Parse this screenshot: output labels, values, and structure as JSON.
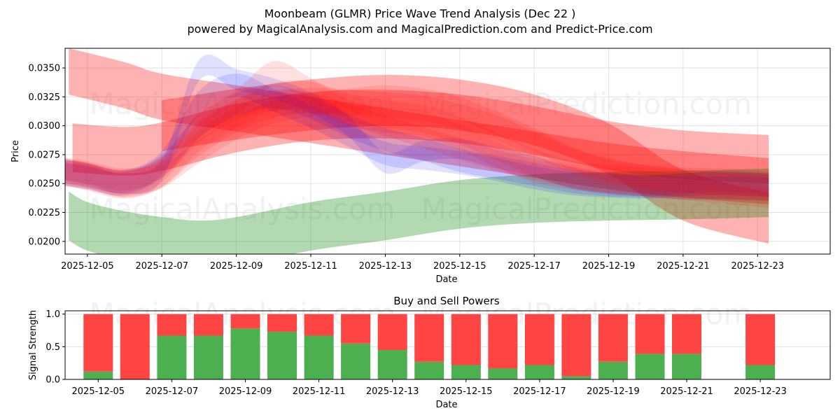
{
  "title": "Moonbeam (GLMR) Price Wave Trend Analysis (Dec 22 )",
  "subtitle": "powered by MagicalAnalysis.com and MagicalPrediction.com and Predict-Price.com",
  "watermarks": [
    "MagicalAnalysis.com",
    "MagicalPrediction.com"
  ],
  "colors": {
    "red": "#ff0000",
    "blue": "#0000ff",
    "green": "#008000",
    "buy": "#4caf50",
    "sell": "#ff4444",
    "grid": "#dddddd"
  },
  "chart_data": [
    {
      "type": "line",
      "name": "price-wave-chart",
      "xlabel": "Date",
      "ylabel": "Price",
      "xlim": [
        -0.6,
        19.95
      ],
      "ylim": [
        0.0189,
        0.0367
      ],
      "x_ticks": [
        {
          "x": 0,
          "label": "2025-12-05"
        },
        {
          "x": 2,
          "label": "2025-12-07"
        },
        {
          "x": 4,
          "label": "2025-12-09"
        },
        {
          "x": 6,
          "label": "2025-12-11"
        },
        {
          "x": 8,
          "label": "2025-12-13"
        },
        {
          "x": 10,
          "label": "2025-12-15"
        },
        {
          "x": 12,
          "label": "2025-12-17"
        },
        {
          "x": 14,
          "label": "2025-12-19"
        },
        {
          "x": 16,
          "label": "2025-12-21"
        },
        {
          "x": 18,
          "label": "2025-12-23"
        }
      ],
      "y_ticks": [
        {
          "y": 0.02,
          "label": "0.0200"
        },
        {
          "y": 0.0225,
          "label": "0.0225"
        },
        {
          "y": 0.025,
          "label": "0.0250"
        },
        {
          "y": 0.0275,
          "label": "0.0275"
        },
        {
          "y": 0.03,
          "label": "0.0300"
        },
        {
          "y": 0.0325,
          "label": "0.0325"
        },
        {
          "y": 0.035,
          "label": "0.0350"
        }
      ],
      "bands": [
        {
          "name": "red-band-wide-top",
          "color": "red",
          "opacity": 0.3,
          "x": [
            -0.5,
            1,
            2,
            4,
            6,
            8,
            10,
            12,
            14,
            16,
            18.3
          ],
          "center": [
            0.0347,
            0.0335,
            0.0325,
            0.0315,
            0.0305,
            0.0295,
            0.0285,
            0.0275,
            0.0265,
            0.0258,
            0.0252
          ],
          "half": 0.002
        },
        {
          "name": "red-band-mid",
          "color": "red",
          "opacity": 0.3,
          "x": [
            -0.4,
            1,
            2,
            4,
            6,
            8,
            10,
            12,
            14,
            16,
            18.3
          ],
          "center": [
            0.0281,
            0.0278,
            0.0282,
            0.0298,
            0.0308,
            0.031,
            0.0306,
            0.0296,
            0.0283,
            0.0275,
            0.0271
          ],
          "half": 0.0021
        },
        {
          "name": "red-band-low",
          "color": "red",
          "opacity": 0.3,
          "x": [
            2,
            4,
            6,
            8,
            10,
            12,
            14,
            16,
            18.3
          ],
          "center": [
            0.03,
            0.031,
            0.0318,
            0.0322,
            0.0318,
            0.0305,
            0.028,
            0.024,
            0.022
          ],
          "half": 0.0022
        },
        {
          "name": "green-band",
          "color": "green",
          "opacity": 0.3,
          "x": [
            -0.5,
            0,
            1,
            2,
            3,
            4,
            6,
            8,
            10,
            12,
            14,
            16,
            18.3
          ],
          "center": [
            0.0222,
            0.0213,
            0.0205,
            0.02,
            0.0197,
            0.02,
            0.0213,
            0.0222,
            0.0232,
            0.0237,
            0.0239,
            0.024,
            0.0242
          ],
          "half": 0.0021
        },
        {
          "name": "blue-wave-1",
          "color": "blue",
          "opacity": 0.12,
          "x": [
            -0.7,
            0,
            1,
            2,
            3,
            4,
            5,
            6,
            7,
            8,
            9,
            10,
            11,
            12,
            13,
            14,
            15,
            16,
            17,
            18.3
          ],
          "center": [
            0.0262,
            0.0258,
            0.025,
            0.0262,
            0.0348,
            0.034,
            0.0332,
            0.032,
            0.03,
            0.0268,
            0.0278,
            0.028,
            0.0272,
            0.0265,
            0.0255,
            0.025,
            0.0248,
            0.025,
            0.0252,
            0.025
          ],
          "half": 0.0009
        },
        {
          "name": "blue-wave-2",
          "color": "blue",
          "opacity": 0.12,
          "x": [
            -0.7,
            0,
            1,
            2,
            3,
            4,
            5,
            6,
            7,
            8,
            9,
            10,
            11,
            12,
            13,
            14,
            15,
            16,
            17,
            18.3
          ],
          "center": [
            0.0261,
            0.0257,
            0.0252,
            0.0268,
            0.032,
            0.0335,
            0.0322,
            0.0308,
            0.0292,
            0.0276,
            0.0272,
            0.0268,
            0.0262,
            0.0255,
            0.025,
            0.0248,
            0.0247,
            0.0249,
            0.025,
            0.0248
          ],
          "half": 0.001
        },
        {
          "name": "blue-wave-3",
          "color": "blue",
          "opacity": 0.12,
          "x": [
            -0.7,
            0,
            1,
            2,
            3,
            4,
            5,
            6,
            7,
            8,
            9,
            10,
            11,
            12,
            13,
            14,
            15,
            16,
            17,
            18.3
          ],
          "center": [
            0.0259,
            0.0255,
            0.025,
            0.0265,
            0.03,
            0.0318,
            0.0325,
            0.0316,
            0.03,
            0.0288,
            0.028,
            0.027,
            0.0264,
            0.0258,
            0.0252,
            0.0249,
            0.0248,
            0.0246,
            0.0246,
            0.0245
          ],
          "half": 0.001
        },
        {
          "name": "red-wave-1",
          "color": "red",
          "opacity": 0.12,
          "x": [
            -0.7,
            0,
            1,
            2,
            3,
            4,
            5,
            6,
            7,
            8,
            9,
            10,
            11,
            12,
            13,
            14,
            15,
            16,
            17,
            18.3
          ],
          "center": [
            0.026,
            0.0257,
            0.025,
            0.0262,
            0.03,
            0.032,
            0.0345,
            0.033,
            0.0312,
            0.0305,
            0.0302,
            0.029,
            0.0275,
            0.0262,
            0.0256,
            0.0252,
            0.025,
            0.0248,
            0.0248,
            0.0246
          ],
          "half": 0.0011
        },
        {
          "name": "red-wave-2",
          "color": "red",
          "opacity": 0.12,
          "x": [
            -0.7,
            0,
            1,
            2,
            3,
            4,
            5,
            6,
            7,
            8,
            9,
            10,
            11,
            12,
            13,
            14,
            15,
            16,
            17,
            18.3
          ],
          "center": [
            0.0262,
            0.0258,
            0.0252,
            0.0258,
            0.0285,
            0.0305,
            0.0318,
            0.0322,
            0.032,
            0.0318,
            0.0315,
            0.0308,
            0.0298,
            0.0284,
            0.027,
            0.026,
            0.0255,
            0.0253,
            0.0252,
            0.025
          ],
          "half": 0.0011
        },
        {
          "name": "red-wave-3",
          "color": "red",
          "opacity": 0.12,
          "x": [
            -0.7,
            0,
            1,
            2,
            3,
            4,
            5,
            6,
            7,
            8,
            9,
            10,
            11,
            12,
            13,
            14,
            15,
            16,
            17,
            18.3
          ],
          "center": [
            0.0258,
            0.0255,
            0.0248,
            0.0256,
            0.0278,
            0.0298,
            0.0312,
            0.0318,
            0.0322,
            0.0325,
            0.0322,
            0.0315,
            0.0302,
            0.0288,
            0.0272,
            0.0262,
            0.0256,
            0.0252,
            0.025,
            0.0249
          ],
          "half": 0.001
        },
        {
          "name": "red-wave-4",
          "color": "red",
          "opacity": 0.12,
          "x": [
            -0.7,
            0,
            1,
            2,
            3,
            4,
            5,
            6,
            7,
            8,
            9,
            10,
            11,
            12,
            13,
            14,
            15,
            16,
            17,
            18.3
          ],
          "center": [
            0.0261,
            0.0256,
            0.0249,
            0.0259,
            0.029,
            0.031,
            0.0325,
            0.0326,
            0.0316,
            0.031,
            0.0306,
            0.0296,
            0.0282,
            0.0268,
            0.0258,
            0.0254,
            0.0252,
            0.025,
            0.0249,
            0.0248
          ],
          "half": 0.0012
        },
        {
          "name": "red-wave-5",
          "color": "red",
          "opacity": 0.12,
          "x": [
            -0.7,
            0,
            1,
            2,
            3,
            4,
            5,
            6,
            7,
            8,
            9,
            10,
            11,
            12,
            13,
            14,
            15,
            16,
            17,
            18.3
          ],
          "center": [
            0.0263,
            0.0259,
            0.0253,
            0.0264,
            0.0295,
            0.0314,
            0.0322,
            0.032,
            0.031,
            0.03,
            0.029,
            0.028,
            0.027,
            0.0262,
            0.0256,
            0.0251,
            0.0248,
            0.0245,
            0.0242,
            0.0238
          ],
          "half": 0.0009
        }
      ]
    },
    {
      "type": "bar",
      "name": "buy-sell-powers",
      "title": "Buy and Sell Powers",
      "xlabel": "Date",
      "ylabel": "Signal Strength",
      "ylim": [
        0,
        1.05
      ],
      "xlim": [
        -0.9,
        19.9
      ],
      "x_ticks": [
        {
          "x": 0,
          "label": "2025-12-05"
        },
        {
          "x": 2,
          "label": "2025-12-07"
        },
        {
          "x": 4,
          "label": "2025-12-09"
        },
        {
          "x": 6,
          "label": "2025-12-11"
        },
        {
          "x": 8,
          "label": "2025-12-13"
        },
        {
          "x": 10,
          "label": "2025-12-15"
        },
        {
          "x": 12,
          "label": "2025-12-17"
        },
        {
          "x": 14,
          "label": "2025-12-19"
        },
        {
          "x": 16,
          "label": "2025-12-21"
        },
        {
          "x": 18,
          "label": "2025-12-23"
        }
      ],
      "y_ticks": [
        {
          "y": 0.0,
          "label": "0.0"
        },
        {
          "y": 0.5,
          "label": "0.5"
        },
        {
          "y": 1.0,
          "label": "1.0"
        }
      ],
      "categories": [
        "2025-12-05",
        "2025-12-06",
        "2025-12-07",
        "2025-12-08",
        "2025-12-09",
        "2025-12-10",
        "2025-12-11",
        "2025-12-12",
        "2025-12-13",
        "2025-12-14",
        "2025-12-15",
        "2025-12-16",
        "2025-12-17",
        "2025-12-18",
        "2025-12-19",
        "2025-12-20",
        "2025-12-21",
        "2025-12-23"
      ],
      "x": [
        0,
        1,
        2,
        3,
        4,
        5,
        6,
        7,
        8,
        9,
        10,
        11,
        12,
        13,
        14,
        15,
        16,
        18
      ],
      "series": [
        {
          "name": "Buy",
          "color": "buy",
          "values": [
            0.12,
            0.0,
            0.67,
            0.67,
            0.78,
            0.73,
            0.67,
            0.55,
            0.45,
            0.27,
            0.22,
            0.17,
            0.22,
            0.05,
            0.27,
            0.39,
            0.39,
            0.22
          ]
        },
        {
          "name": "Sell",
          "color": "sell",
          "values": [
            0.88,
            1.0,
            0.33,
            0.33,
            0.22,
            0.27,
            0.33,
            0.45,
            0.55,
            0.73,
            0.78,
            0.83,
            0.78,
            0.95,
            0.73,
            0.61,
            0.61,
            0.78
          ]
        }
      ]
    }
  ]
}
